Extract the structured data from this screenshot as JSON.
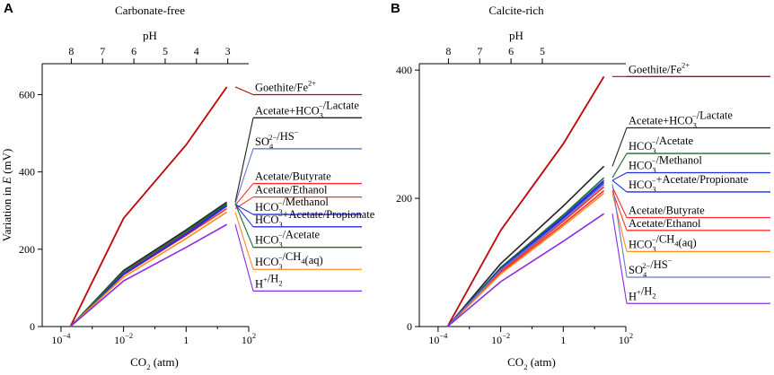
{
  "chart_data": [
    {
      "panel_label": "A",
      "type": "line",
      "title": "Carbonate-free",
      "top_axis": {
        "label": "pH",
        "ticks": [
          "8",
          "7",
          "6",
          "5",
          "4",
          "3"
        ],
        "tick_x_log10": [
          -3.67,
          -2.67,
          -1.67,
          -0.67,
          0.33,
          1.33
        ]
      },
      "xlabel": "CO2 (atm)",
      "xlabel_sub": "2",
      "xlabel_pre": "CO",
      "xlabel_post": " (atm)",
      "xscale": "log",
      "x_ticks": [
        {
          "base": "10",
          "exp": "−4",
          "log10": -4
        },
        {
          "base": "10",
          "exp": "−2",
          "log10": -2
        },
        {
          "base": "1",
          "exp": "",
          "log10": 0
        },
        {
          "base": "10",
          "exp": "2",
          "log10": 2
        }
      ],
      "xlim_log10": [
        -4.6,
        2
      ],
      "ylabel": "Variation in E (mV)",
      "ylabel_pre": "Variation in ",
      "ylabel_italic": "E",
      "ylabel_post": " (mV)",
      "ylim": [
        0,
        680
      ],
      "y_ticks": [
        "0",
        "200",
        "400",
        "600"
      ],
      "series": [
        {
          "name": "Goethite/Fe2+",
          "color": "#c00000",
          "x_log10": [
            -3.7,
            -2,
            0,
            1.3
          ],
          "y": [
            0,
            280,
            470,
            620
          ]
        },
        {
          "name": "Acetate+HCO3−/Lactate",
          "color": "#222222",
          "x_log10": [
            -3.7,
            -2,
            0,
            1.3
          ],
          "y": [
            0,
            145,
            250,
            322
          ]
        },
        {
          "name": "SO42−/HS−",
          "color": "#6677cc",
          "x_log10": [
            -3.7,
            -2,
            0,
            1.3
          ],
          "y": [
            0,
            140,
            245,
            318
          ]
        },
        {
          "name": "Acetate/Butyrate",
          "color": "#ff2a2a",
          "x_log10": [
            -3.7,
            -2,
            0,
            1.3
          ],
          "y": [
            0,
            138,
            242,
            314
          ]
        },
        {
          "name": "Acetate/Ethanol",
          "color": "#ff3030",
          "x_log10": [
            -3.7,
            -2,
            0,
            1.3
          ],
          "y": [
            0,
            134,
            236,
            305
          ]
        },
        {
          "name": "HCO3−/Methanol",
          "color": "#1f2fe0",
          "x_log10": [
            -3.7,
            -2,
            0,
            1.3
          ],
          "y": [
            0,
            136,
            240,
            316
          ]
        },
        {
          "name": "HCO3−+Acetate/Propionate",
          "color": "#1f2fe0",
          "x_log10": [
            -3.7,
            -2,
            0,
            1.3
          ],
          "y": [
            0,
            135,
            238,
            312
          ]
        },
        {
          "name": "HCO3−/Acetate",
          "color": "#1f6b2e",
          "x_log10": [
            -3.7,
            -2,
            0,
            1.3
          ],
          "y": [
            0,
            142,
            246,
            318
          ]
        },
        {
          "name": "HCO3−/CH4(aq)",
          "color": "#ff8c1a",
          "x_log10": [
            -3.7,
            -2,
            0,
            1.3
          ],
          "y": [
            0,
            128,
            228,
            296
          ]
        },
        {
          "name": "H+/H2",
          "color": "#8a2be2",
          "x_log10": [
            -3.7,
            -2,
            0,
            1.3
          ],
          "y": [
            0,
            118,
            205,
            264
          ]
        }
      ],
      "annotations": [
        {
          "color": "#c00000",
          "y": 600,
          "parts": [
            [
              "Goethite/Fe",
              ""
            ],
            [
              "2+",
              "sup"
            ]
          ]
        },
        {
          "color": "#222222",
          "y": 540,
          "parts": [
            [
              "Acetate+HCO",
              ""
            ],
            [
              "3",
              "subsup",
              "−"
            ],
            [
              "/Lactate",
              ""
            ]
          ]
        },
        {
          "color": "#6677cc",
          "y": 460,
          "parts": [
            [
              "SO",
              ""
            ],
            [
              "4",
              "subsup",
              "2−"
            ],
            [
              "/HS",
              ""
            ],
            [
              "−",
              "sup"
            ]
          ]
        },
        {
          "color": "#ff2a2a",
          "y": 370,
          "parts": [
            [
              "Acetate/Butyrate",
              ""
            ]
          ]
        },
        {
          "color": "#ff3030",
          "y": 335,
          "parts": [
            [
              "Acetate/Ethanol",
              ""
            ]
          ]
        },
        {
          "color": "#1f2fe0",
          "y": 290,
          "parts": [
            [
              "HCO",
              ""
            ],
            [
              "3",
              "subsup",
              "−"
            ],
            [
              "/Methanol",
              ""
            ]
          ]
        },
        {
          "color": "#1f2fe0",
          "y": 258,
          "parts": [
            [
              "HCO",
              ""
            ],
            [
              "3",
              "subsup",
              "−"
            ],
            [
              "+Acetate/Propionate",
              ""
            ]
          ]
        },
        {
          "color": "#1f6b2e",
          "y": 205,
          "parts": [
            [
              "HCO",
              ""
            ],
            [
              "3",
              "subsup",
              "−"
            ],
            [
              "/Acetate",
              ""
            ]
          ]
        },
        {
          "color": "#ff8c1a",
          "y": 148,
          "parts": [
            [
              "HCO",
              ""
            ],
            [
              "3",
              "subsup",
              "−"
            ],
            [
              "/CH",
              ""
            ],
            [
              "4",
              "sub"
            ],
            [
              "(aq)",
              ""
            ]
          ]
        },
        {
          "color": "#8a2be2",
          "y": 92,
          "parts": [
            [
              "H",
              ""
            ],
            [
              "+",
              "sup"
            ],
            [
              "/H",
              ""
            ],
            [
              "2",
              "sub"
            ]
          ]
        }
      ]
    },
    {
      "panel_label": "B",
      "type": "line",
      "title": "Calcite-rich",
      "top_axis": {
        "label": "pH",
        "ticks": [
          "8",
          "7",
          "6",
          "5"
        ],
        "tick_x_log10": [
          -3.67,
          -2.67,
          -1.67,
          -0.67
        ]
      },
      "xlabel": "CO2 (atm)",
      "xlabel_pre": "CO",
      "xlabel_sub": "2",
      "xlabel_post": " (atm)",
      "xscale": "log",
      "x_ticks": [
        {
          "base": "10",
          "exp": "−4",
          "log10": -4
        },
        {
          "base": "10",
          "exp": "−2",
          "log10": -2
        },
        {
          "base": "1",
          "exp": "",
          "log10": 0
        },
        {
          "base": "10",
          "exp": "2",
          "log10": 2
        }
      ],
      "xlim_log10": [
        -4.6,
        2
      ],
      "ylabel": "",
      "ylim": [
        0,
        410
      ],
      "y_ticks": [
        "0",
        "200",
        "400"
      ],
      "series": [
        {
          "name": "Goethite/Fe2+",
          "color": "#c00000",
          "x_log10": [
            -3.7,
            -2,
            0,
            1.3
          ],
          "y": [
            0,
            150,
            285,
            390
          ]
        },
        {
          "name": "Acetate+HCO3−/Lactate",
          "color": "#222222",
          "x_log10": [
            -3.7,
            -2,
            0,
            1.3
          ],
          "y": [
            0,
            98,
            188,
            250
          ]
        },
        {
          "name": "HCO3−/Acetate",
          "color": "#1f6b2e",
          "x_log10": [
            -3.7,
            -2,
            0,
            1.3
          ],
          "y": [
            0,
            92,
            174,
            232
          ]
        },
        {
          "name": "HCO3−/Methanol",
          "color": "#1f2fe0",
          "x_log10": [
            -3.7,
            -2,
            0,
            1.3
          ],
          "y": [
            0,
            90,
            171,
            228
          ]
        },
        {
          "name": "HCO3−+Acetate/Propionate",
          "color": "#1f2fe0",
          "x_log10": [
            -3.7,
            -2,
            0,
            1.3
          ],
          "y": [
            0,
            89,
            169,
            225
          ]
        },
        {
          "name": "Acetate/Butyrate",
          "color": "#ff2a2a",
          "x_log10": [
            -3.7,
            -2,
            0,
            1.3
          ],
          "y": [
            0,
            86,
            164,
            218
          ]
        },
        {
          "name": "Acetate/Ethanol",
          "color": "#ff3030",
          "x_log10": [
            -3.7,
            -2,
            0,
            1.3
          ],
          "y": [
            0,
            84,
            160,
            212
          ]
        },
        {
          "name": "HCO3−/CH4(aq)",
          "color": "#ff8c1a",
          "x_log10": [
            -3.7,
            -2,
            0,
            1.3
          ],
          "y": [
            0,
            82,
            157,
            208
          ]
        },
        {
          "name": "SO42−/HS−",
          "color": "#6677cc",
          "x_log10": [
            -3.7,
            -2,
            0,
            1.3
          ],
          "y": [
            0,
            88,
            166,
            222
          ]
        },
        {
          "name": "H+/H2",
          "color": "#8a2be2",
          "x_log10": [
            -3.7,
            -2,
            0,
            1.3
          ],
          "y": [
            0,
            70,
            133,
            176
          ]
        }
      ],
      "annotations": [
        {
          "color": "#c00000",
          "y": 390,
          "parts": [
            [
              "Goethite/Fe",
              ""
            ],
            [
              "2+",
              "sup"
            ]
          ]
        },
        {
          "color": "#222222",
          "y": 310,
          "parts": [
            [
              "Acetate+HCO",
              ""
            ],
            [
              "3",
              "subsup",
              "−"
            ],
            [
              "/Lactate",
              ""
            ]
          ]
        },
        {
          "color": "#1f6b2e",
          "y": 270,
          "parts": [
            [
              "HCO",
              ""
            ],
            [
              "3",
              "subsup",
              "−"
            ],
            [
              "/Acetate",
              ""
            ]
          ]
        },
        {
          "color": "#1f2fe0",
          "y": 240,
          "parts": [
            [
              "HCO",
              ""
            ],
            [
              "3",
              "subsup",
              "−"
            ],
            [
              "/Methanol",
              ""
            ]
          ]
        },
        {
          "color": "#1f2fe0",
          "y": 210,
          "parts": [
            [
              "HCO",
              ""
            ],
            [
              "3",
              "subsup",
              "−"
            ],
            [
              "+Acetate/Propionate",
              ""
            ]
          ]
        },
        {
          "color": "#ff2a2a",
          "y": 170,
          "parts": [
            [
              "Acetate/Butyrate",
              ""
            ]
          ]
        },
        {
          "color": "#ff3030",
          "y": 150,
          "parts": [
            [
              "Acetate/Ethanol",
              ""
            ]
          ]
        },
        {
          "color": "#ff8c1a",
          "y": 117,
          "parts": [
            [
              "HCO",
              ""
            ],
            [
              "3",
              "subsup",
              "−"
            ],
            [
              "/CH",
              ""
            ],
            [
              "4",
              "sub"
            ],
            [
              "(aq)",
              ""
            ]
          ]
        },
        {
          "color": "#6677cc",
          "y": 77,
          "parts": [
            [
              "SO",
              ""
            ],
            [
              "4",
              "subsup",
              "2−"
            ],
            [
              "/HS",
              ""
            ],
            [
              "−",
              "sup"
            ]
          ]
        },
        {
          "color": "#8a2be2",
          "y": 36,
          "parts": [
            [
              "H",
              ""
            ],
            [
              "+",
              "sup"
            ],
            [
              "/H",
              ""
            ],
            [
              "2",
              "sub"
            ]
          ]
        }
      ]
    }
  ]
}
